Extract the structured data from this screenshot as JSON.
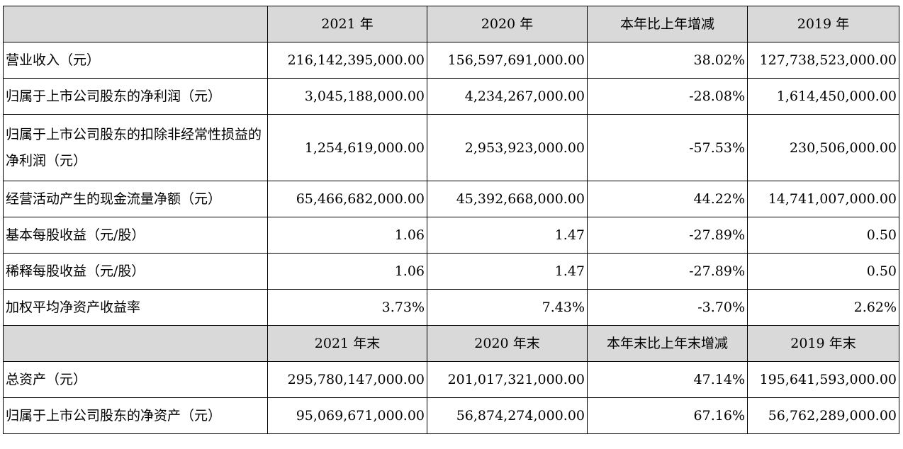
{
  "header1": [
    "",
    "2021 年",
    "2020 年",
    "本年比上年增减",
    "2019 年"
  ],
  "rows1": [
    {
      "label": "营业收入（元）",
      "v2021": "216,142,395,000.00",
      "v2020": "156,597,691,000.00",
      "change": "38.02%",
      "v2019": "127,738,523,000.00"
    },
    {
      "label": "归属于上市公司股东的净利润（元）",
      "v2021": "3,045,188,000.00",
      "v2020": "4,234,267,000.00",
      "change": "-28.08%",
      "v2019": "1,614,450,000.00"
    },
    {
      "label": "归属于上市公司股东的扣除非经常性损益的净利润（元）",
      "v2021": "1,254,619,000.00",
      "v2020": "2,953,923,000.00",
      "change": "-57.53%",
      "v2019": "230,506,000.00"
    },
    {
      "label": "经营活动产生的现金流量净额（元）",
      "v2021": "65,466,682,000.00",
      "v2020": "45,392,668,000.00",
      "change": "44.22%",
      "v2019": "14,741,007,000.00"
    },
    {
      "label": "基本每股收益（元/股）",
      "v2021": "1.06",
      "v2020": "1.47",
      "change": "-27.89%",
      "v2019": "0.50"
    },
    {
      "label": "稀释每股收益（元/股）",
      "v2021": "1.06",
      "v2020": "1.47",
      "change": "-27.89%",
      "v2019": "0.50"
    },
    {
      "label": "加权平均净资产收益率",
      "v2021": "3.73%",
      "v2020": "7.43%",
      "change": "-3.70%",
      "v2019": "2.62%"
    }
  ],
  "header2": [
    "",
    "2021 年末",
    "2020 年末",
    "本年末比上年末增减",
    "2019 年末"
  ],
  "rows2": [
    {
      "label": "总资产（元）",
      "v2021": "295,780,147,000.00",
      "v2020": "201,017,321,000.00",
      "change": "47.14%",
      "v2019": "195,641,593,000.00"
    },
    {
      "label": "归属于上市公司股东的净资产（元）",
      "v2021": "95,069,671,000.00",
      "v2020": "56,874,274,000.00",
      "change": "67.16%",
      "v2019": "56,762,289,000.00"
    }
  ]
}
